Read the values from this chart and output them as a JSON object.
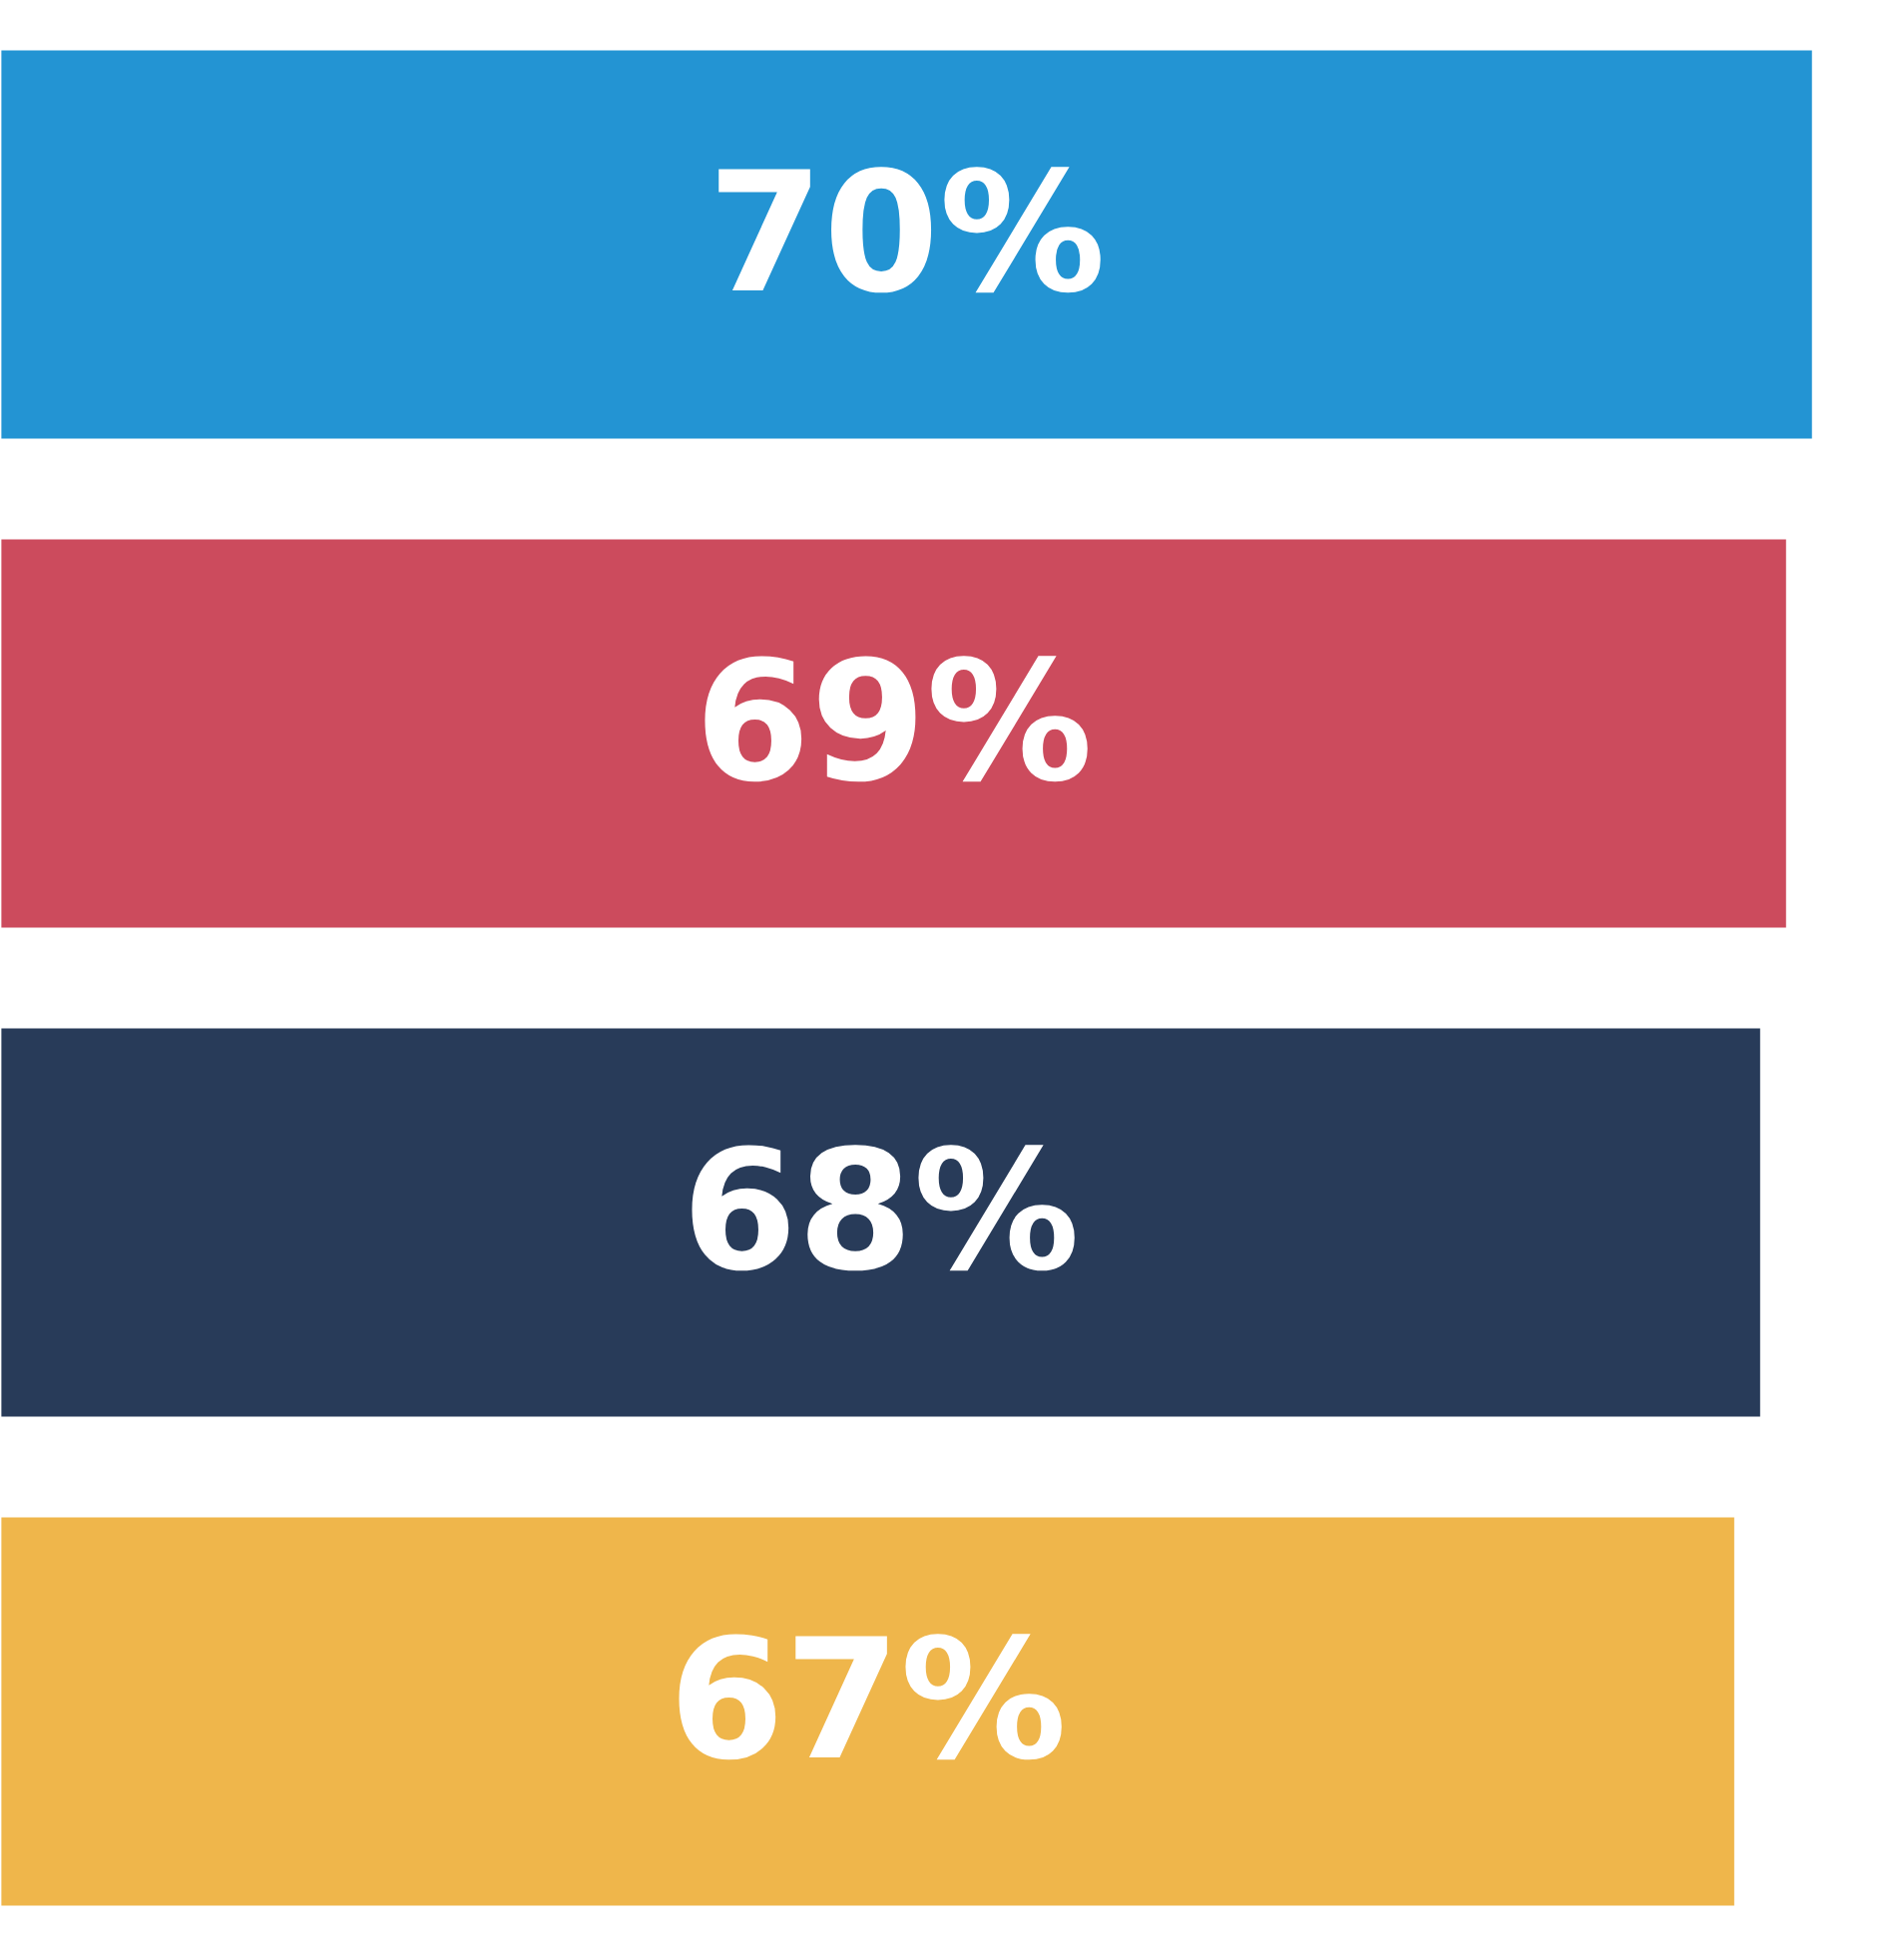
{
  "chart_data": {
    "type": "bar",
    "orientation": "horizontal",
    "categories": [
      null,
      null,
      null,
      null
    ],
    "values": [
      70,
      69,
      68,
      67
    ],
    "value_labels": [
      "70%",
      "69%",
      "68%",
      "67%"
    ],
    "colors": [
      "#2394d3",
      "#cc4b5d",
      "#283b59",
      "#efb64b"
    ]
  }
}
